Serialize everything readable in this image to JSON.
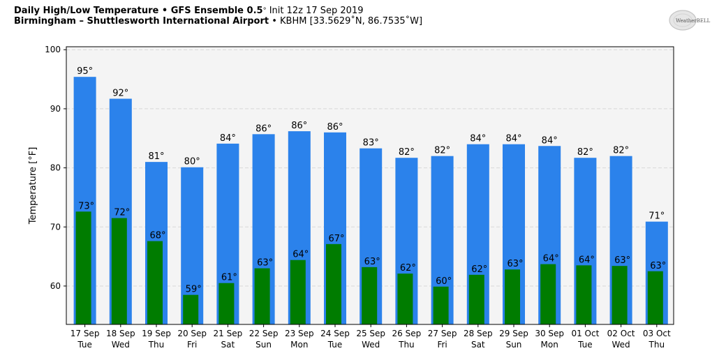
{
  "header": {
    "title_bold": "Daily High/Low Temperature • GFS Ensemble 0.5",
    "title_deg": "°",
    "title_rest": " Init 12z 17 Sep 2019",
    "location_bold": "Birmingham – Shuttlesworth International Airport",
    "location_rest": " • KBHM [33.5629˚N, 86.7535˚W]"
  },
  "logo": {
    "text": "WeatherBELL",
    "icon": "weatherbell-logo"
  },
  "colors": {
    "high": "#2b82eb",
    "low": "#007c00",
    "plot_bg": "#f4f4f4",
    "grid": "#d8d8d8"
  },
  "chart_data": {
    "type": "bar",
    "title": "",
    "xlabel": "",
    "ylabel": "Temperature [°F]",
    "ylim": [
      53.5,
      100.5
    ],
    "yticks": [
      60,
      70,
      80,
      90,
      100
    ],
    "grid": true,
    "categories": [
      [
        "17 Sep",
        "Tue"
      ],
      [
        "18 Sep",
        "Wed"
      ],
      [
        "19 Sep",
        "Thu"
      ],
      [
        "20 Sep",
        "Fri"
      ],
      [
        "21 Sep",
        "Sat"
      ],
      [
        "22 Sep",
        "Sun"
      ],
      [
        "23 Sep",
        "Mon"
      ],
      [
        "24 Sep",
        "Tue"
      ],
      [
        "25 Sep",
        "Wed"
      ],
      [
        "26 Sep",
        "Thu"
      ],
      [
        "27 Sep",
        "Fri"
      ],
      [
        "28 Sep",
        "Sat"
      ],
      [
        "29 Sep",
        "Sun"
      ],
      [
        "30 Sep",
        "Mon"
      ],
      [
        "01 Oct",
        "Tue"
      ],
      [
        "02 Oct",
        "Wed"
      ],
      [
        "03 Oct",
        "Thu"
      ]
    ],
    "series": [
      {
        "key": "high",
        "values": [
          95.4,
          91.7,
          81.0,
          80.1,
          84.1,
          85.7,
          86.2,
          86.0,
          83.3,
          81.7,
          82.0,
          84.0,
          84.0,
          83.7,
          81.7,
          82.0,
          70.9
        ],
        "labels": [
          "95°",
          "92°",
          "81°",
          "80°",
          "84°",
          "86°",
          "86°",
          "86°",
          "83°",
          "82°",
          "82°",
          "84°",
          "84°",
          "84°",
          "82°",
          "82°",
          "71°"
        ]
      },
      {
        "key": "low",
        "values": [
          72.6,
          71.5,
          67.6,
          58.5,
          60.5,
          63.0,
          64.4,
          67.1,
          63.2,
          62.1,
          59.9,
          61.9,
          62.8,
          63.7,
          63.5,
          63.4,
          62.5
        ],
        "labels": [
          "73°",
          "72°",
          "68°",
          "59°",
          "61°",
          "63°",
          "64°",
          "67°",
          "63°",
          "62°",
          "60°",
          "62°",
          "63°",
          "64°",
          "64°",
          "63°",
          "63°"
        ]
      }
    ]
  }
}
